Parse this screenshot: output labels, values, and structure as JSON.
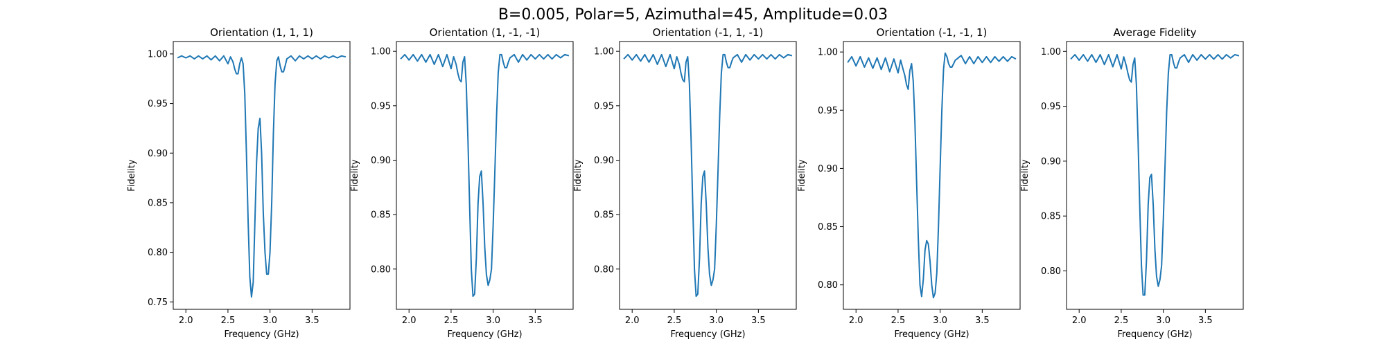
{
  "figure": {
    "suptitle": "B=0.005, Polar=5, Azimuthal=45, Amplitude=0.03"
  },
  "chart_data": [
    {
      "type": "line",
      "title": "Orientation (1, 1, 1)",
      "xlabel": "Frequency (GHz)",
      "ylabel": "Fidelity",
      "xlim": [
        1.85,
        3.95
      ],
      "ylim": [
        0.7425,
        1.0125
      ],
      "xticks": [
        2.0,
        2.5,
        3.0,
        3.5
      ],
      "yticks": [
        0.75,
        0.8,
        0.85,
        0.9,
        0.95,
        1.0
      ],
      "grid": false,
      "series": [
        {
          "color": "#1f77b4",
          "x": [
            1.9,
            1.95,
            2.0,
            2.05,
            2.1,
            2.15,
            2.2,
            2.25,
            2.3,
            2.35,
            2.4,
            2.45,
            2.5,
            2.53,
            2.56,
            2.58,
            2.6,
            2.62,
            2.64,
            2.66,
            2.68,
            2.7,
            2.72,
            2.74,
            2.76,
            2.78,
            2.8,
            2.82,
            2.84,
            2.86,
            2.88,
            2.9,
            2.92,
            2.94,
            2.96,
            2.98,
            3.0,
            3.02,
            3.04,
            3.06,
            3.08,
            3.1,
            3.12,
            3.14,
            3.16,
            3.18,
            3.2,
            3.25,
            3.3,
            3.35,
            3.4,
            3.45,
            3.5,
            3.55,
            3.6,
            3.65,
            3.7,
            3.75,
            3.8,
            3.85,
            3.9
          ],
          "y": [
            0.996,
            0.998,
            0.996,
            0.998,
            0.995,
            0.998,
            0.995,
            0.998,
            0.994,
            0.998,
            0.993,
            0.998,
            0.99,
            0.997,
            0.992,
            0.985,
            0.98,
            0.98,
            0.99,
            0.996,
            0.99,
            0.96,
            0.9,
            0.83,
            0.775,
            0.755,
            0.77,
            0.83,
            0.89,
            0.925,
            0.935,
            0.9,
            0.84,
            0.8,
            0.778,
            0.778,
            0.8,
            0.85,
            0.92,
            0.97,
            0.993,
            0.997,
            0.988,
            0.982,
            0.982,
            0.988,
            0.995,
            0.998,
            0.993,
            0.998,
            0.995,
            0.998,
            0.995,
            0.998,
            0.995,
            0.998,
            0.996,
            0.998,
            0.996,
            0.998,
            0.997
          ]
        }
      ]
    },
    {
      "type": "line",
      "title": "Orientation (1, -1, -1)",
      "xlabel": "Frequency (GHz)",
      "ylabel": "Fidelity",
      "xlim": [
        1.85,
        3.95
      ],
      "ylim": [
        0.763,
        1.009
      ],
      "xticks": [
        2.0,
        2.5,
        3.0,
        3.5
      ],
      "yticks": [
        0.8,
        0.85,
        0.9,
        0.95,
        1.0
      ],
      "grid": false,
      "series": [
        {
          "color": "#1f77b4",
          "x": [
            1.9,
            1.95,
            2.0,
            2.05,
            2.1,
            2.15,
            2.2,
            2.25,
            2.3,
            2.35,
            2.4,
            2.45,
            2.5,
            2.53,
            2.56,
            2.58,
            2.6,
            2.62,
            2.64,
            2.66,
            2.68,
            2.7,
            2.72,
            2.74,
            2.76,
            2.78,
            2.8,
            2.82,
            2.84,
            2.86,
            2.88,
            2.9,
            2.92,
            2.94,
            2.96,
            2.98,
            3.0,
            3.02,
            3.04,
            3.06,
            3.08,
            3.1,
            3.12,
            3.14,
            3.16,
            3.18,
            3.2,
            3.25,
            3.3,
            3.35,
            3.4,
            3.45,
            3.5,
            3.55,
            3.6,
            3.65,
            3.7,
            3.75,
            3.8,
            3.85,
            3.9
          ],
          "y": [
            0.993,
            0.997,
            0.992,
            0.997,
            0.991,
            0.997,
            0.99,
            0.997,
            0.988,
            0.997,
            0.986,
            0.997,
            0.984,
            0.995,
            0.988,
            0.98,
            0.974,
            0.972,
            0.99,
            0.995,
            0.97,
            0.92,
            0.86,
            0.8,
            0.775,
            0.777,
            0.81,
            0.86,
            0.885,
            0.89,
            0.86,
            0.82,
            0.795,
            0.785,
            0.79,
            0.8,
            0.84,
            0.89,
            0.94,
            0.98,
            0.997,
            0.997,
            0.99,
            0.985,
            0.985,
            0.99,
            0.994,
            0.997,
            0.99,
            0.997,
            0.992,
            0.997,
            0.993,
            0.997,
            0.993,
            0.997,
            0.993,
            0.997,
            0.994,
            0.997,
            0.996
          ]
        }
      ]
    },
    {
      "type": "line",
      "title": "Orientation (-1, 1, -1)",
      "xlabel": "Frequency (GHz)",
      "ylabel": "Fidelity",
      "xlim": [
        1.85,
        3.95
      ],
      "ylim": [
        0.763,
        1.009
      ],
      "xticks": [
        2.0,
        2.5,
        3.0,
        3.5
      ],
      "yticks": [
        0.8,
        0.85,
        0.9,
        0.95,
        1.0
      ],
      "grid": false,
      "series": [
        {
          "color": "#1f77b4",
          "x": [
            1.9,
            1.95,
            2.0,
            2.05,
            2.1,
            2.15,
            2.2,
            2.25,
            2.3,
            2.35,
            2.4,
            2.45,
            2.5,
            2.53,
            2.56,
            2.58,
            2.6,
            2.62,
            2.64,
            2.66,
            2.68,
            2.7,
            2.72,
            2.74,
            2.76,
            2.78,
            2.8,
            2.82,
            2.84,
            2.86,
            2.88,
            2.9,
            2.92,
            2.94,
            2.96,
            2.98,
            3.0,
            3.02,
            3.04,
            3.06,
            3.08,
            3.1,
            3.12,
            3.14,
            3.16,
            3.18,
            3.2,
            3.25,
            3.3,
            3.35,
            3.4,
            3.45,
            3.5,
            3.55,
            3.6,
            3.65,
            3.7,
            3.75,
            3.8,
            3.85,
            3.9
          ],
          "y": [
            0.993,
            0.997,
            0.992,
            0.997,
            0.991,
            0.997,
            0.99,
            0.997,
            0.988,
            0.997,
            0.986,
            0.997,
            0.984,
            0.995,
            0.988,
            0.98,
            0.974,
            0.972,
            0.99,
            0.995,
            0.97,
            0.92,
            0.86,
            0.8,
            0.775,
            0.777,
            0.81,
            0.86,
            0.885,
            0.89,
            0.86,
            0.82,
            0.795,
            0.785,
            0.79,
            0.8,
            0.84,
            0.89,
            0.94,
            0.98,
            0.997,
            0.997,
            0.99,
            0.985,
            0.985,
            0.99,
            0.994,
            0.997,
            0.99,
            0.997,
            0.992,
            0.997,
            0.993,
            0.997,
            0.993,
            0.997,
            0.993,
            0.997,
            0.994,
            0.997,
            0.996
          ]
        }
      ]
    },
    {
      "type": "line",
      "title": "Orientation (-1, -1, 1)",
      "xlabel": "Frequency (GHz)",
      "ylabel": "Fidelity",
      "xlim": [
        1.85,
        3.95
      ],
      "ylim": [
        0.779,
        1.009
      ],
      "xticks": [
        2.0,
        2.5,
        3.0,
        3.5
      ],
      "yticks": [
        0.8,
        0.85,
        0.9,
        0.95,
        1.0
      ],
      "grid": false,
      "series": [
        {
          "color": "#1f77b4",
          "x": [
            1.9,
            1.95,
            2.0,
            2.05,
            2.1,
            2.15,
            2.2,
            2.25,
            2.3,
            2.35,
            2.4,
            2.45,
            2.5,
            2.53,
            2.56,
            2.58,
            2.6,
            2.62,
            2.64,
            2.66,
            2.68,
            2.7,
            2.72,
            2.74,
            2.76,
            2.78,
            2.8,
            2.82,
            2.84,
            2.86,
            2.88,
            2.9,
            2.92,
            2.94,
            2.96,
            2.98,
            3.0,
            3.02,
            3.04,
            3.06,
            3.08,
            3.1,
            3.12,
            3.14,
            3.16,
            3.18,
            3.2,
            3.25,
            3.3,
            3.35,
            3.4,
            3.45,
            3.5,
            3.55,
            3.6,
            3.65,
            3.7,
            3.75,
            3.8,
            3.85,
            3.9
          ],
          "y": [
            0.991,
            0.996,
            0.988,
            0.996,
            0.987,
            0.995,
            0.986,
            0.995,
            0.985,
            0.995,
            0.983,
            0.994,
            0.982,
            0.993,
            0.985,
            0.98,
            0.972,
            0.968,
            0.984,
            0.99,
            0.975,
            0.94,
            0.89,
            0.84,
            0.8,
            0.79,
            0.805,
            0.83,
            0.838,
            0.835,
            0.82,
            0.8,
            0.789,
            0.793,
            0.81,
            0.85,
            0.9,
            0.95,
            0.985,
            0.999,
            0.996,
            0.99,
            0.987,
            0.987,
            0.99,
            0.993,
            0.994,
            0.997,
            0.99,
            0.996,
            0.99,
            0.996,
            0.991,
            0.996,
            0.991,
            0.996,
            0.992,
            0.996,
            0.992,
            0.996,
            0.994
          ]
        }
      ]
    },
    {
      "type": "line",
      "title": "Average Fidelity",
      "xlabel": "Frequency (GHz)",
      "ylabel": "Fidelity",
      "xlim": [
        1.85,
        3.95
      ],
      "ylim": [
        0.765,
        1.009
      ],
      "xticks": [
        2.0,
        2.5,
        3.0,
        3.5
      ],
      "yticks": [
        0.8,
        0.85,
        0.9,
        0.95,
        1.0
      ],
      "grid": false,
      "series": [
        {
          "color": "#1f77b4",
          "x": [
            1.9,
            1.95,
            2.0,
            2.05,
            2.1,
            2.15,
            2.2,
            2.25,
            2.3,
            2.35,
            2.4,
            2.45,
            2.5,
            2.53,
            2.56,
            2.58,
            2.6,
            2.62,
            2.64,
            2.66,
            2.68,
            2.7,
            2.72,
            2.74,
            2.76,
            2.78,
            2.8,
            2.82,
            2.84,
            2.86,
            2.88,
            2.9,
            2.92,
            2.94,
            2.96,
            2.98,
            3.0,
            3.02,
            3.04,
            3.06,
            3.08,
            3.1,
            3.12,
            3.14,
            3.16,
            3.18,
            3.2,
            3.25,
            3.3,
            3.35,
            3.4,
            3.45,
            3.5,
            3.55,
            3.6,
            3.65,
            3.7,
            3.75,
            3.8,
            3.85,
            3.9
          ],
          "y": [
            0.993,
            0.997,
            0.992,
            0.997,
            0.991,
            0.997,
            0.99,
            0.997,
            0.988,
            0.997,
            0.986,
            0.997,
            0.984,
            0.995,
            0.987,
            0.98,
            0.974,
            0.972,
            0.988,
            0.994,
            0.97,
            0.92,
            0.86,
            0.805,
            0.778,
            0.778,
            0.81,
            0.86,
            0.885,
            0.888,
            0.86,
            0.82,
            0.795,
            0.786,
            0.792,
            0.805,
            0.845,
            0.895,
            0.945,
            0.98,
            0.997,
            0.997,
            0.99,
            0.985,
            0.985,
            0.99,
            0.994,
            0.997,
            0.99,
            0.997,
            0.992,
            0.997,
            0.993,
            0.997,
            0.993,
            0.997,
            0.993,
            0.997,
            0.994,
            0.997,
            0.996
          ]
        }
      ]
    }
  ]
}
